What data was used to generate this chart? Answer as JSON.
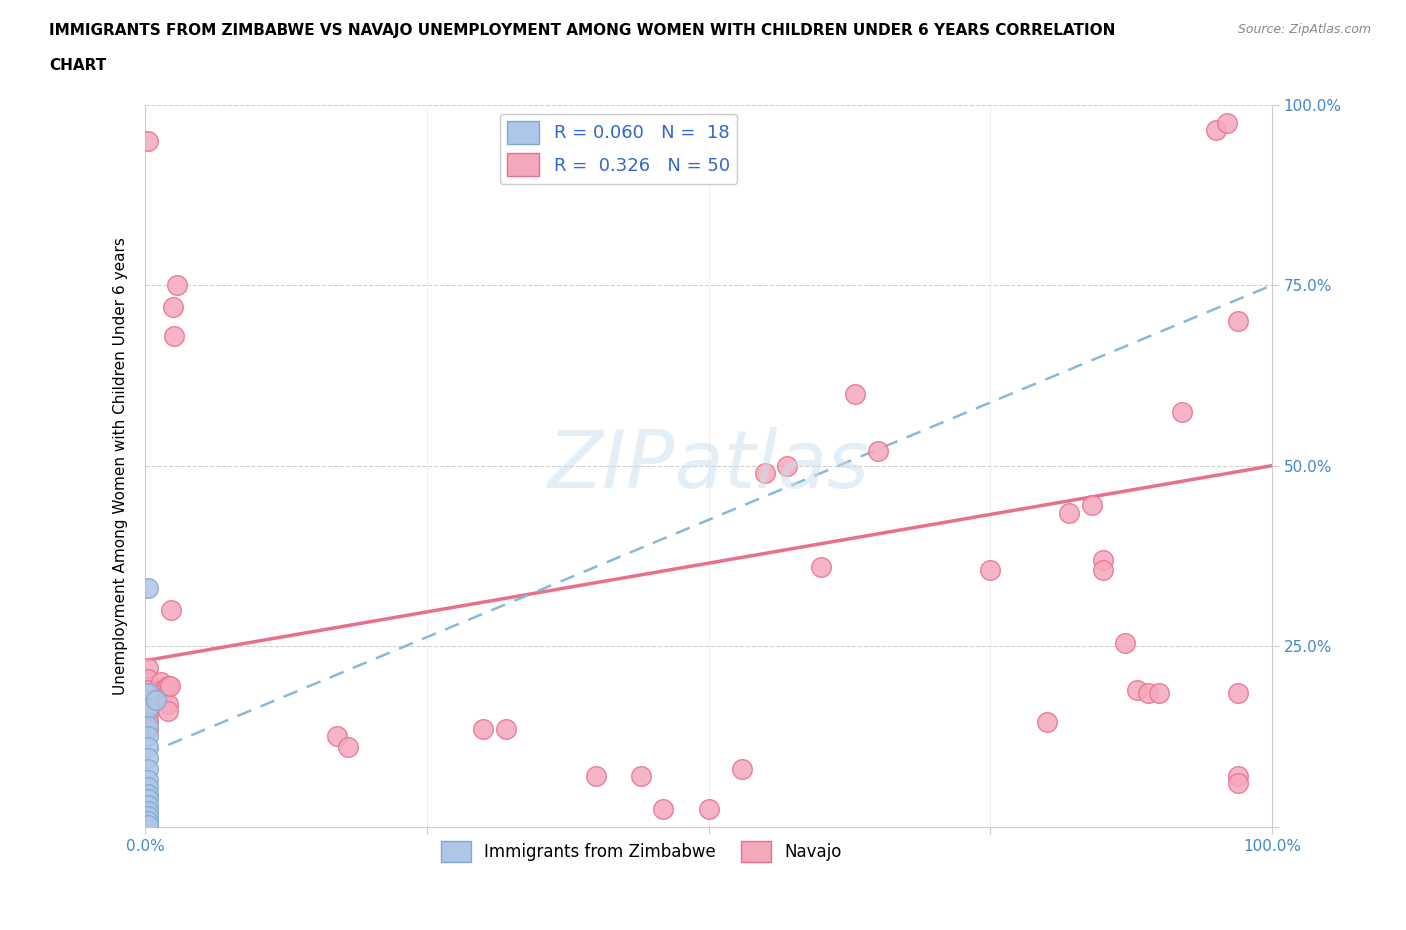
{
  "title_line1": "IMMIGRANTS FROM ZIMBABWE VS NAVAJO UNEMPLOYMENT AMONG WOMEN WITH CHILDREN UNDER 6 YEARS CORRELATION",
  "title_line2": "CHART",
  "source": "Source: ZipAtlas.com",
  "ylabel": "Unemployment Among Women with Children Under 6 years",
  "xlim": [
    0,
    1.0
  ],
  "ylim": [
    0,
    1.0
  ],
  "color_blue": "#aec6e8",
  "color_pink": "#f4a8bc",
  "edge_blue": "#7aaad4",
  "edge_pink": "#e8708a",
  "line_blue_color": "#8ab8d8",
  "line_pink_color": "#e8708a",
  "watermark_color": "#c8dff0",
  "blue_regression": [
    0.1,
    0.75
  ],
  "pink_regression": [
    0.23,
    0.5
  ],
  "blue_points": [
    [
      0.003,
      0.33
    ],
    [
      0.003,
      0.185
    ],
    [
      0.003,
      0.165
    ],
    [
      0.003,
      0.14
    ],
    [
      0.003,
      0.125
    ],
    [
      0.003,
      0.11
    ],
    [
      0.003,
      0.095
    ],
    [
      0.003,
      0.08
    ],
    [
      0.003,
      0.065
    ],
    [
      0.003,
      0.055
    ],
    [
      0.003,
      0.045
    ],
    [
      0.003,
      0.038
    ],
    [
      0.003,
      0.03
    ],
    [
      0.003,
      0.022
    ],
    [
      0.003,
      0.015
    ],
    [
      0.003,
      0.008
    ],
    [
      0.003,
      0.002
    ],
    [
      0.01,
      0.175
    ]
  ],
  "pink_points": [
    [
      0.003,
      0.95
    ],
    [
      0.003,
      0.22
    ],
    [
      0.003,
      0.205
    ],
    [
      0.003,
      0.19
    ],
    [
      0.003,
      0.175
    ],
    [
      0.003,
      0.165
    ],
    [
      0.003,
      0.155
    ],
    [
      0.003,
      0.145
    ],
    [
      0.003,
      0.135
    ],
    [
      0.014,
      0.2
    ],
    [
      0.015,
      0.19
    ],
    [
      0.018,
      0.19
    ],
    [
      0.02,
      0.195
    ],
    [
      0.02,
      0.17
    ],
    [
      0.02,
      0.16
    ],
    [
      0.022,
      0.195
    ],
    [
      0.023,
      0.3
    ],
    [
      0.025,
      0.72
    ],
    [
      0.026,
      0.68
    ],
    [
      0.028,
      0.75
    ],
    [
      0.17,
      0.125
    ],
    [
      0.18,
      0.11
    ],
    [
      0.3,
      0.135
    ],
    [
      0.32,
      0.135
    ],
    [
      0.4,
      0.07
    ],
    [
      0.44,
      0.07
    ],
    [
      0.46,
      0.025
    ],
    [
      0.5,
      0.025
    ],
    [
      0.53,
      0.08
    ],
    [
      0.55,
      0.49
    ],
    [
      0.57,
      0.5
    ],
    [
      0.6,
      0.36
    ],
    [
      0.63,
      0.6
    ],
    [
      0.65,
      0.52
    ],
    [
      0.75,
      0.355
    ],
    [
      0.8,
      0.145
    ],
    [
      0.82,
      0.435
    ],
    [
      0.84,
      0.445
    ],
    [
      0.85,
      0.37
    ],
    [
      0.85,
      0.355
    ],
    [
      0.87,
      0.255
    ],
    [
      0.88,
      0.19
    ],
    [
      0.89,
      0.185
    ],
    [
      0.9,
      0.185
    ],
    [
      0.92,
      0.575
    ],
    [
      0.95,
      0.965
    ],
    [
      0.96,
      0.975
    ],
    [
      0.97,
      0.7
    ],
    [
      0.97,
      0.185
    ],
    [
      0.97,
      0.07
    ],
    [
      0.97,
      0.06
    ]
  ]
}
